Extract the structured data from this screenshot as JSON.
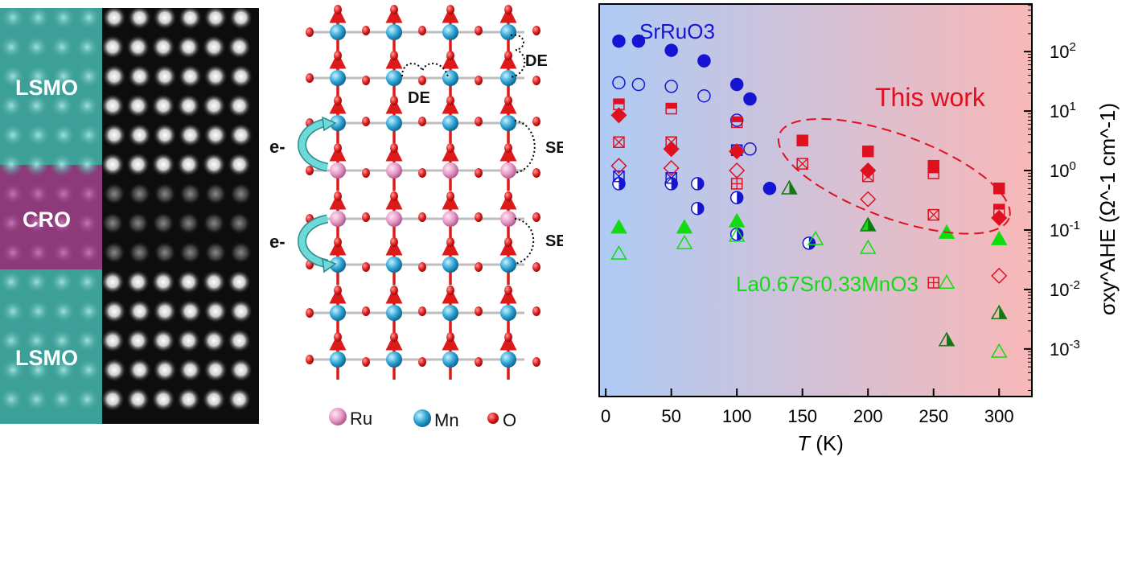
{
  "figure": {
    "stem": {
      "label_top": "LSMO",
      "label_middle": "CRO",
      "label_bottom": "LSMO",
      "colors": {
        "lsmo": "#3c9f98",
        "cro": "#8c3a7a",
        "stem_bg": "#0d0d0d"
      }
    },
    "lattice": {
      "labels": {
        "de_top_right": "DE",
        "de_middle": "DE",
        "se_upper": "SE",
        "se_lower": "SE",
        "electron_upper": "e-",
        "electron_lower": "e-"
      },
      "legend": {
        "ru": "Ru",
        "mn": "Mn",
        "o": "O"
      },
      "colors": {
        "ru": "#e79ac7",
        "mn": "#2fa6d6",
        "o": "#dd1a1a",
        "arrow": "#5fcfcf",
        "bond": "#bdbdbd"
      }
    }
  },
  "chart_data": {
    "type": "scatter",
    "title": "",
    "xlabel": "T (K)",
    "ylabel": "σxy^AHE (Ω^-1 cm^-1)",
    "xlim": [
      -5,
      325
    ],
    "ylim_log10": [
      -3.8,
      2.8
    ],
    "x_ticks": [
      0,
      50,
      100,
      150,
      200,
      250,
      300
    ],
    "y_ticks": [
      "10^2",
      "10^1",
      "10^0",
      "10^-1",
      "10^-2",
      "10^-3"
    ],
    "annotations": {
      "srruo3": "SrRuO3",
      "this_work": "This work",
      "lsmo": "La0.67Sr0.33MnO3"
    },
    "colors": {
      "blue": "#1414d2",
      "red": "#e01020",
      "green": "#10dc10",
      "dark_green": "#107a10",
      "bg_left": "#aecbf5",
      "bg_right": "#f8b8b8"
    },
    "series": [
      {
        "name": "SrRuO3 filled circle",
        "marker": "circle",
        "fill": "full",
        "color": "blue",
        "points": [
          [
            10,
            150
          ],
          [
            25,
            150
          ],
          [
            50,
            105
          ],
          [
            75,
            70
          ],
          [
            100,
            28
          ],
          [
            110,
            16
          ],
          [
            125,
            0.5
          ]
        ]
      },
      {
        "name": "SrRuO3 open circle",
        "marker": "circle",
        "fill": "none",
        "color": "blue",
        "points": [
          [
            10,
            30
          ],
          [
            25,
            28
          ],
          [
            50,
            26
          ],
          [
            75,
            18
          ],
          [
            100,
            7
          ],
          [
            110,
            2.3
          ]
        ]
      },
      {
        "name": "SrRuO3 half-filled circle",
        "marker": "circle",
        "fill": "half",
        "color": "blue",
        "points": [
          [
            10,
            0.6
          ],
          [
            50,
            0.6
          ],
          [
            70,
            0.6
          ],
          [
            70,
            0.23
          ],
          [
            100,
            0.35
          ],
          [
            100,
            0.085
          ],
          [
            155,
            0.06
          ]
        ]
      },
      {
        "name": "Blue small crossed square",
        "marker": "square",
        "fill": "cross",
        "color": "blue",
        "points": [
          [
            10,
            0.8
          ],
          [
            50,
            0.75
          ],
          [
            100,
            2.2
          ]
        ]
      },
      {
        "name": "This work filled square",
        "marker": "square",
        "fill": "full",
        "color": "red",
        "points": [
          [
            150,
            3.2
          ],
          [
            200,
            2.1
          ],
          [
            250,
            1.2
          ],
          [
            300,
            0.5
          ]
        ]
      },
      {
        "name": "This work half square",
        "marker": "square",
        "fill": "half",
        "color": "red",
        "points": [
          [
            10,
            13
          ],
          [
            50,
            11
          ],
          [
            100,
            6.5
          ],
          [
            250,
            0.9
          ],
          [
            300,
            0.22
          ]
        ]
      },
      {
        "name": "This work filled diamond",
        "marker": "diamond",
        "fill": "full",
        "color": "red",
        "points": [
          [
            10,
            8.5
          ],
          [
            50,
            2.3
          ],
          [
            100,
            2.1
          ],
          [
            200,
            1.0
          ],
          [
            300,
            0.16
          ]
        ]
      },
      {
        "name": "This work open diamond",
        "marker": "diamond",
        "fill": "none",
        "color": "red",
        "points": [
          [
            10,
            1.2
          ],
          [
            50,
            1.1
          ],
          [
            100,
            1.0
          ],
          [
            200,
            0.33
          ],
          [
            300,
            0.017
          ]
        ]
      },
      {
        "name": "This work crossed square",
        "marker": "square",
        "fill": "cross",
        "color": "red",
        "points": [
          [
            10,
            3.0
          ],
          [
            50,
            3.0
          ],
          [
            150,
            1.3
          ],
          [
            200,
            0.8
          ],
          [
            250,
            0.18
          ]
        ]
      },
      {
        "name": "This work plus square",
        "marker": "square",
        "fill": "plus",
        "color": "red",
        "points": [
          [
            100,
            0.6
          ],
          [
            250,
            0.013
          ]
        ]
      },
      {
        "name": "LSMO filled triangle",
        "marker": "triangle",
        "fill": "full",
        "color": "green",
        "points": [
          [
            10,
            0.11
          ],
          [
            60,
            0.11
          ],
          [
            100,
            0.14
          ],
          [
            200,
            0.12
          ],
          [
            260,
            0.09
          ],
          [
            300,
            0.07
          ]
        ]
      },
      {
        "name": "LSMO open triangle",
        "marker": "triangle",
        "fill": "none",
        "color": "green",
        "points": [
          [
            10,
            0.04
          ],
          [
            60,
            0.06
          ],
          [
            100,
            0.08
          ],
          [
            160,
            0.07
          ],
          [
            200,
            0.05
          ],
          [
            260,
            0.013
          ],
          [
            300,
            0.0009
          ]
        ]
      },
      {
        "name": "LSMO half triangle",
        "marker": "triangle",
        "fill": "half",
        "color": "dark_green",
        "points": [
          [
            140,
            0.5
          ],
          [
            200,
            0.12
          ],
          [
            260,
            0.0014
          ],
          [
            300,
            0.004
          ]
        ]
      }
    ],
    "ellipse_around_data": {
      "center_data": [
        220,
        0.8
      ],
      "note": "dashed ellipse highlighting this work"
    }
  }
}
